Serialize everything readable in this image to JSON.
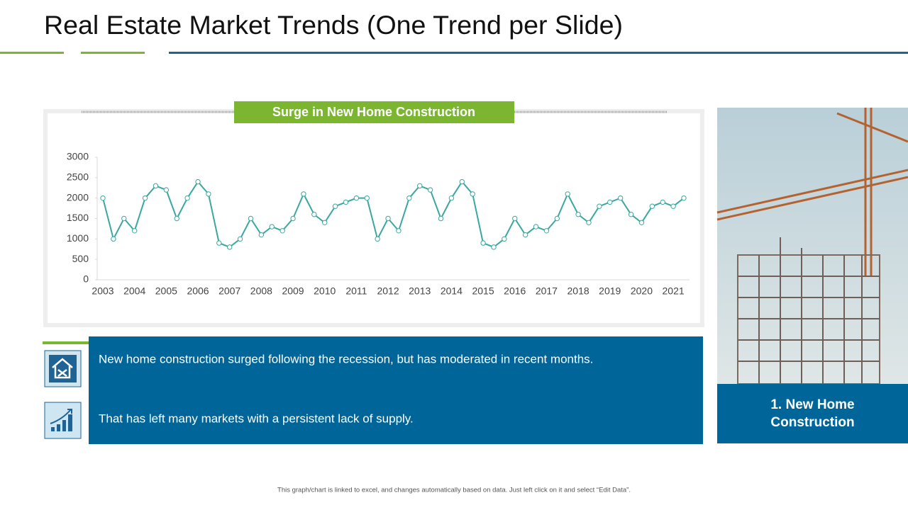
{
  "header": {
    "title": "Real Estate Market Trends (One Trend per Slide)"
  },
  "chart_data": {
    "type": "line",
    "title": "Surge in New Home Construction",
    "categories": [
      "2003",
      null,
      null,
      "2004",
      null,
      null,
      "2005",
      null,
      null,
      "2006",
      null,
      null,
      "2007",
      null,
      null,
      "2008",
      null,
      null,
      "2009",
      null,
      null,
      "2010",
      null,
      null,
      "2011",
      null,
      null,
      "2012",
      null,
      null,
      "2013",
      null,
      null,
      "2014",
      null,
      null,
      "2015",
      null,
      null,
      "2016",
      null,
      null,
      "2017",
      null,
      null,
      "2018",
      null,
      null,
      "2019",
      null,
      null,
      "2020",
      null,
      null,
      "2021",
      null
    ],
    "values": [
      2000,
      1000,
      1500,
      1200,
      2000,
      2300,
      2200,
      1500,
      2000,
      2400,
      2100,
      900,
      800,
      1000,
      1500,
      1100,
      1300,
      1200,
      1500,
      2100,
      1600,
      1400,
      1800,
      1900,
      2000,
      2000,
      1000,
      1500,
      1200,
      2000,
      2300,
      2200,
      1500,
      2000,
      2400,
      2100,
      900,
      800,
      1000,
      1500,
      1100,
      1300,
      1200,
      1500,
      2100,
      1600,
      1400,
      1800,
      1900,
      2000,
      1600,
      1400,
      1800,
      1900,
      1800,
      2000
    ],
    "color": "#3aa8a0",
    "ylim": [
      0,
      3000
    ],
    "yticks": [
      0,
      500,
      1000,
      1500,
      2000,
      2500,
      3000
    ]
  },
  "points": [
    "New home construction surged following the recession, but has moderated in recent months.",
    "That has left many markets with a persistent lack of supply."
  ],
  "caption": "1. New Home Construction",
  "footer": "This graph/chart is linked to excel, and changes automatically based on data. Just left click on it and select “Edit Data”."
}
